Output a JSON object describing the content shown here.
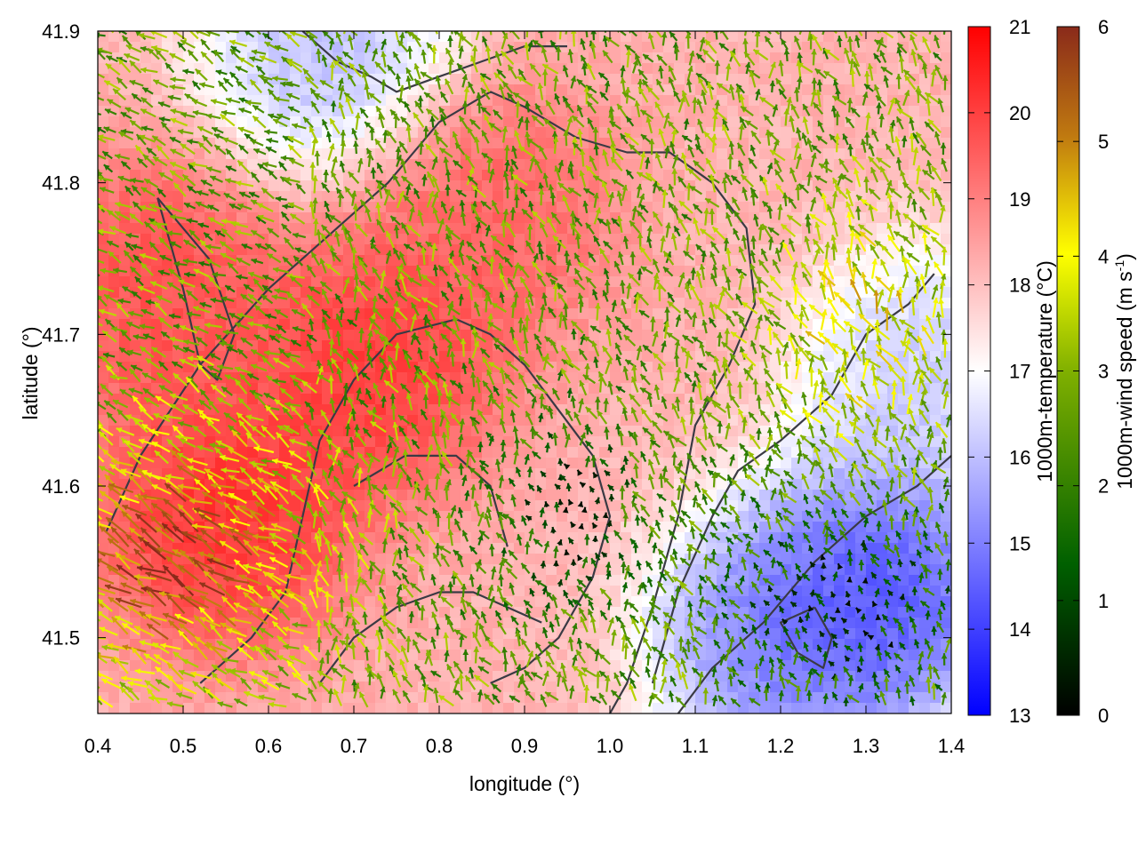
{
  "chart_data": {
    "type": "heatmap",
    "description_overlays": [
      "wind vectors",
      "contour lines"
    ],
    "xlabel": "longitude (°)",
    "ylabel": "latitude (°)",
    "xlim": [
      0.4,
      1.4
    ],
    "ylim": [
      41.45,
      41.9
    ],
    "xticks": [
      "0.4",
      "0.5",
      "0.6",
      "0.7",
      "0.8",
      "0.9",
      "1.0",
      "1.1",
      "1.2",
      "1.3",
      "1.4"
    ],
    "yticks": [
      "41.5",
      "41.6",
      "41.7",
      "41.8",
      "41.9"
    ],
    "xtick_values": [
      0.4,
      0.5,
      0.6,
      0.7,
      0.8,
      0.9,
      1.0,
      1.1,
      1.2,
      1.3,
      1.4
    ],
    "ytick_values": [
      41.5,
      41.6,
      41.7,
      41.8,
      41.9
    ],
    "temperature_colorbar": {
      "label": "1000m-temperature (°C)",
      "range": [
        13,
        21
      ],
      "ticks": [
        "13",
        "14",
        "15",
        "16",
        "17",
        "18",
        "19",
        "20",
        "21"
      ],
      "colors": [
        "#0000ff",
        "#ffffff",
        "#ff0000"
      ]
    },
    "wind_colorbar": {
      "label_main": "1000m-wind speed (m s",
      "label_sup": "-1",
      "label_end": ")",
      "range": [
        0,
        6
      ],
      "ticks": [
        "0",
        "1",
        "2",
        "3",
        "4",
        "5",
        "6"
      ],
      "colors": [
        "#000000",
        "#006000",
        "#80b000",
        "#ffff00",
        "#c07a10",
        "#8a2a1a"
      ]
    },
    "temperature_field_features": [
      {
        "kind": "warm",
        "lon": 0.72,
        "lat": 41.68,
        "value": 20.6
      },
      {
        "kind": "warm",
        "lon": 0.55,
        "lat": 41.58,
        "value": 20.8
      },
      {
        "kind": "warm",
        "lon": 0.85,
        "lat": 41.78,
        "value": 19.8
      },
      {
        "kind": "warm",
        "lon": 0.47,
        "lat": 41.73,
        "value": 20.2
      },
      {
        "kind": "cold",
        "lon": 1.32,
        "lat": 41.53,
        "value": 13.3
      },
      {
        "kind": "cold",
        "lon": 1.2,
        "lat": 41.5,
        "value": 14.2
      },
      {
        "kind": "cold",
        "lon": 1.37,
        "lat": 41.67,
        "value": 15.6
      },
      {
        "kind": "cold",
        "lon": 0.67,
        "lat": 41.89,
        "value": 15.3
      }
    ]
  }
}
